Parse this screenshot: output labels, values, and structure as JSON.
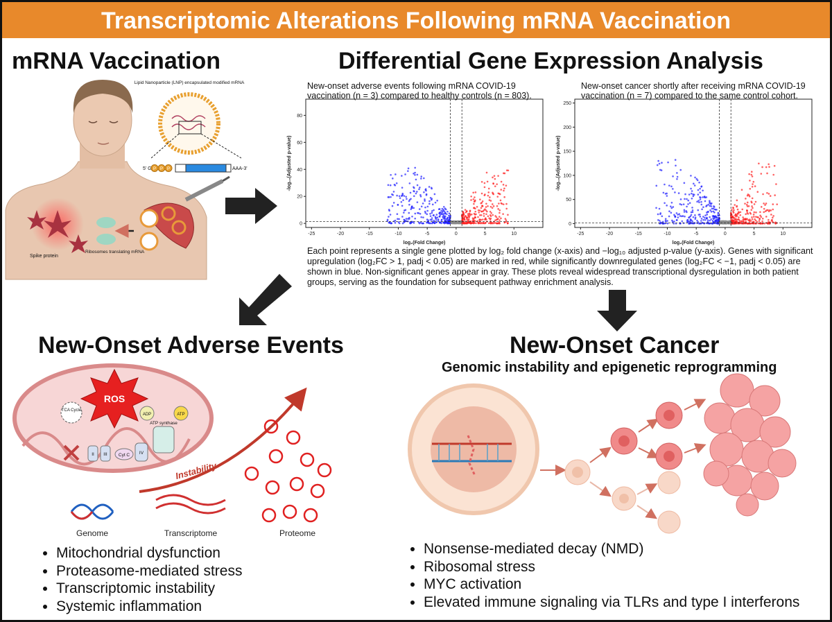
{
  "header": {
    "title": "Transcriptomic Alterations Following mRNA Vaccination"
  },
  "vaccination": {
    "title": "mRNA Vaccination",
    "lnp_label": "Lipid Nanoparticle (LNP) encapsulated modified mRNA",
    "mrna_5": "5' G",
    "mrna_3": "AAA-3'",
    "cap": [
      "P",
      "P",
      "P"
    ],
    "ribosome_label": "Ribosomes translating mRNA",
    "spike_label": "Spike protein"
  },
  "dge": {
    "title": "Differential Gene Expression Analysis",
    "colors": {
      "up": "#ff2020",
      "down": "#2020ff",
      "ns": "#8a8a8a"
    },
    "plots": [
      {
        "caption": "New-onset adverse events following mRNA COVID-19 vaccination (n = 3) compared to healthy controls (n = 803).",
        "xlabel": "log₂(Fold Change)",
        "ylabel": "-log₁₀(Adjusted p-value)",
        "xlim": [
          -26,
          15
        ],
        "xticks": [
          -25,
          -20,
          -15,
          -10,
          -5,
          0,
          5,
          10
        ],
        "ylim": [
          -3,
          92
        ],
        "yticks": [
          0,
          20,
          40,
          60,
          80
        ]
      },
      {
        "caption": "New-onset cancer shortly after receiving mRNA COVID-19 vaccination (n = 7) compared to the same control cohort.",
        "xlabel": "log₂(Fold Change)",
        "ylabel": "-log₁₀(Adjusted p-value)",
        "xlim": [
          -26,
          15
        ],
        "xticks": [
          -25,
          -20,
          -15,
          -10,
          -5,
          0,
          5,
          10
        ],
        "ylim": [
          -8,
          258
        ],
        "yticks": [
          0,
          50,
          100,
          150,
          200,
          250
        ]
      }
    ],
    "description": "Each point represents a single gene plotted by log₂ fold change (x-axis) and −log₁₀ adjusted p-value (y-axis). Genes with significant upregulation (log₂FC > 1, padj < 0.05) are marked in red, while significantly downregulated genes (log₂FC < −1, padj < 0.05) are shown in blue. Non-significant genes appear in gray. These plots reveal widespread transcriptional dysregulation in both patient groups, serving as the foundation for subsequent pathway enrichment analysis."
  },
  "adverse": {
    "title": "New-Onset Adverse Events",
    "ros": "ROS",
    "tca": "TCA Cycle",
    "adp": "ADP",
    "atp": "ATP",
    "atp_synthase": "ATP synthase",
    "complexes": [
      "II",
      "III",
      "Cyt C",
      "IV"
    ],
    "instability": "Instability",
    "omics": [
      "Genome",
      "Transcriptome",
      "Proteome"
    ],
    "bullets": [
      "Mitochondrial dysfunction",
      "Proteasome-mediated stress",
      "Transcriptomic instability",
      "Systemic inflammation"
    ]
  },
  "cancer": {
    "title": "New-Onset Cancer",
    "subtitle": "Genomic instability and epigenetic reprogramming",
    "bullets": [
      "Nonsense-mediated decay (NMD)",
      "Ribosomal stress",
      "MYC activation",
      "Elevated immune signaling via TLRs and type I interferons"
    ]
  }
}
